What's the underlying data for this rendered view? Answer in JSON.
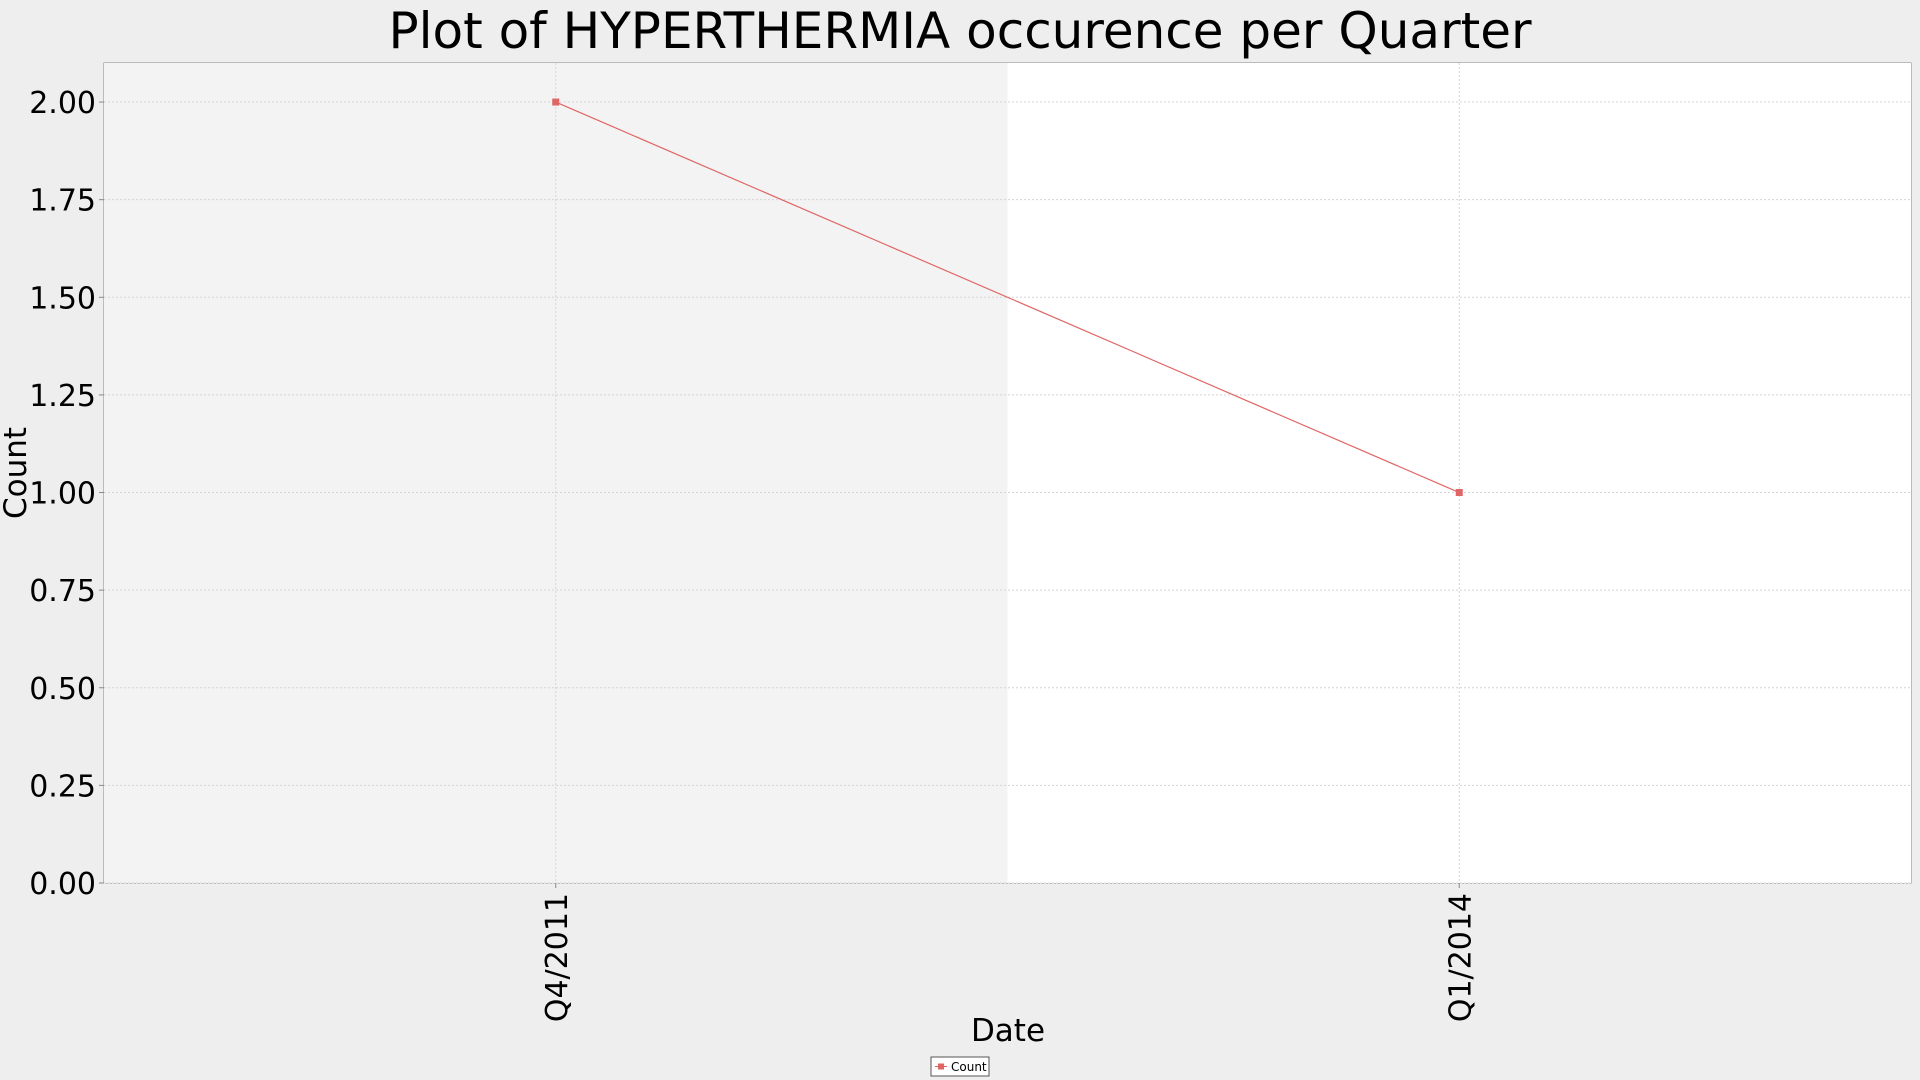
{
  "chart_data": {
    "type": "line",
    "title": "Plot of HYPERTHERMIA occurence per Quarter",
    "xlabel": "Date",
    "ylabel": "Count",
    "categories": [
      "Q4/2011",
      "Q1/2014"
    ],
    "series": [
      {
        "name": "Count",
        "values": [
          2,
          1
        ],
        "color": "#e06666"
      }
    ],
    "ylim": [
      0,
      2.1
    ],
    "yticks": [
      "0.00",
      "0.25",
      "0.50",
      "0.75",
      "1.00",
      "1.25",
      "1.50",
      "1.75",
      "2.00"
    ],
    "grid": true,
    "legend": "bottom-center",
    "colors": {
      "page_background": "#eeeeee",
      "plot_background": "#ffffff",
      "alternate_band": "#f3f3f3",
      "axis": "#888888",
      "grid": "#d4d4d4"
    }
  }
}
